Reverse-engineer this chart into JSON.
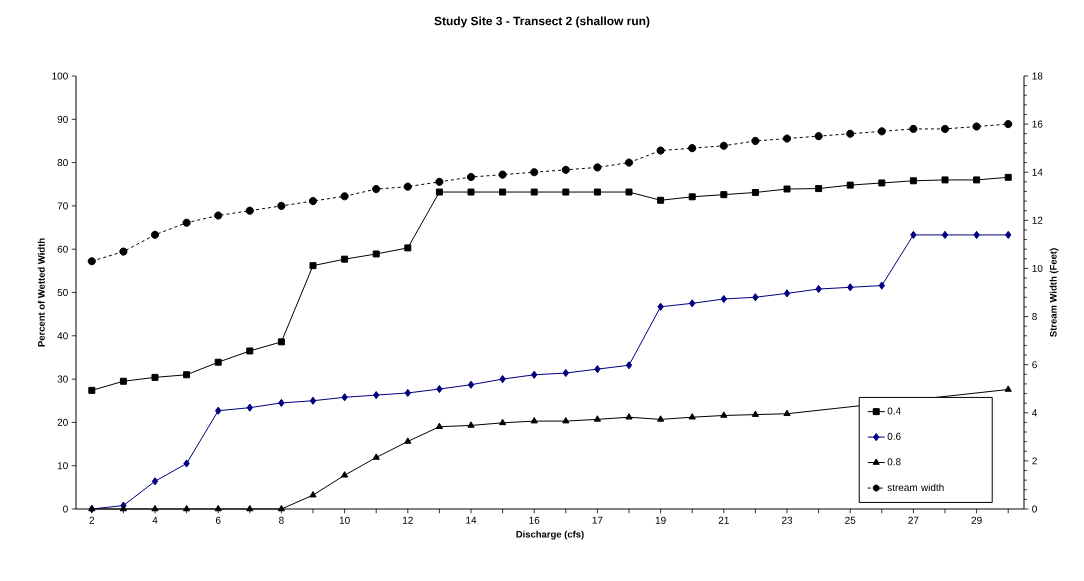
{
  "chart_data": {
    "type": "line",
    "title": "Study Site 3 - Transect 2 (shallow run)",
    "xlabel": "Discharge (cfs)",
    "ylabel": "Percent of Wetted Width",
    "y2label": "Stream Width (Feet)",
    "categories": [
      "2",
      null,
      "4",
      null,
      "6",
      null,
      "8",
      null,
      "10",
      null,
      "12",
      null,
      "14",
      null,
      "16",
      null,
      "17",
      null,
      "19",
      null,
      "21",
      null,
      "23",
      null,
      "25",
      null,
      "27",
      null,
      "29",
      null
    ],
    "ylim": [
      0,
      100
    ],
    "yticks": [
      0,
      10,
      20,
      30,
      40,
      50,
      60,
      70,
      80,
      90,
      100
    ],
    "y2lim": [
      0,
      18
    ],
    "y2ticks": [
      0,
      2,
      4,
      6,
      8,
      10,
      12,
      14,
      16,
      18
    ],
    "legend": "bottom right",
    "series": [
      {
        "name": "0.4",
        "color": "#000000",
        "marker": "square",
        "line_style": "solid",
        "values": [
          27.4,
          29.5,
          30.4,
          31.0,
          33.9,
          36.5,
          38.6,
          56.2,
          57.7,
          58.9,
          60.3,
          73.2,
          73.2,
          73.2,
          73.2,
          73.2,
          73.2,
          73.2,
          71.3,
          72.1,
          72.6,
          73.1,
          73.9,
          74.0,
          74.8,
          75.3,
          75.8,
          76.0,
          76.0,
          76.6
        ]
      },
      {
        "name": "0.6",
        "color": "#000080",
        "marker": "diamond",
        "line_style": "solid",
        "values": [
          0,
          0.8,
          6.4,
          10.5,
          22.7,
          23.4,
          24.5,
          25.0,
          25.8,
          26.3,
          26.8,
          27.7,
          28.7,
          30.0,
          31.0,
          31.4,
          32.3,
          33.2,
          46.7,
          47.5,
          48.5,
          48.9,
          49.8,
          50.8,
          51.2,
          51.6,
          63.3,
          63.3,
          63.3,
          63.3
        ]
      },
      {
        "name": "0.8",
        "color": "#000000",
        "marker": "triangle",
        "line_style": "solid",
        "values": [
          0,
          0,
          0,
          0,
          0,
          0,
          0,
          3.2,
          7.8,
          11.9,
          15.6,
          19.0,
          19.3,
          19.9,
          20.3,
          20.3,
          20.7,
          21.2,
          20.7,
          21.2,
          21.6,
          21.8,
          22.0,
          null,
          null,
          null,
          null,
          null,
          null,
          27.6
        ]
      },
      {
        "name": "stream width",
        "color": "#000000",
        "marker": "circle",
        "line_style": "dashed",
        "axis": "y2",
        "values": [
          10.3,
          10.7,
          11.4,
          11.9,
          12.2,
          12.4,
          12.6,
          12.8,
          13.0,
          13.3,
          13.4,
          13.6,
          13.8,
          13.9,
          14.0,
          14.1,
          14.2,
          14.4,
          14.9,
          15.0,
          15.1,
          15.3,
          15.4,
          15.5,
          15.6,
          15.7,
          15.8,
          15.8,
          15.9,
          16.0
        ]
      }
    ]
  }
}
